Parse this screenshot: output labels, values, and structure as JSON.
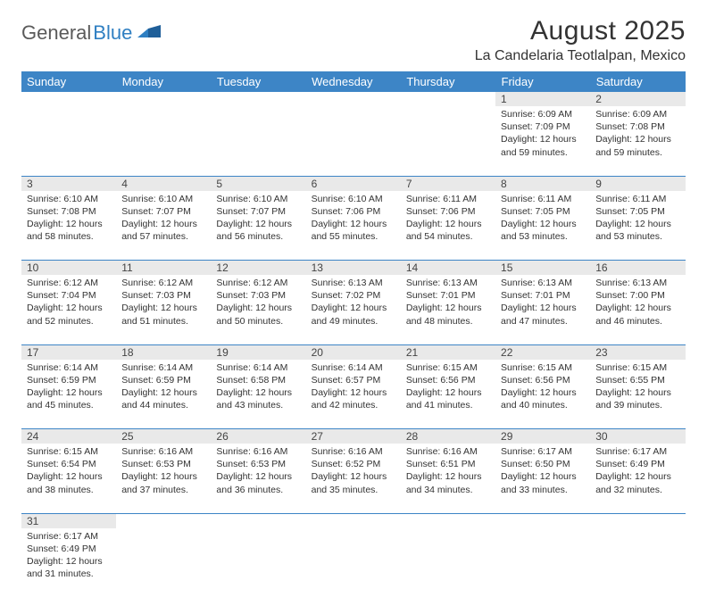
{
  "logo": {
    "text1": "General",
    "text2": "Blue"
  },
  "title": "August 2025",
  "location": "La Candelaria Teotlalpan, Mexico",
  "colors": {
    "header_bg": "#3d85c6",
    "header_text": "#ffffff",
    "daynum_bg": "#e9e9e9",
    "border": "#3d85c6",
    "logo_gray": "#5a5a5a",
    "logo_blue": "#2f7fc2",
    "text": "#333333",
    "background": "#ffffff"
  },
  "typography": {
    "title_fontsize": 30,
    "location_fontsize": 16,
    "dayhead_fontsize": 13,
    "daynum_fontsize": 12,
    "cell_fontsize": 10.5
  },
  "day_headers": [
    "Sunday",
    "Monday",
    "Tuesday",
    "Wednesday",
    "Thursday",
    "Friday",
    "Saturday"
  ],
  "weeks": [
    {
      "nums": [
        "",
        "",
        "",
        "",
        "",
        "1",
        "2"
      ],
      "cells": [
        null,
        null,
        null,
        null,
        null,
        {
          "sunrise": "Sunrise: 6:09 AM",
          "sunset": "Sunset: 7:09 PM",
          "daylight": "Daylight: 12 hours and 59 minutes."
        },
        {
          "sunrise": "Sunrise: 6:09 AM",
          "sunset": "Sunset: 7:08 PM",
          "daylight": "Daylight: 12 hours and 59 minutes."
        }
      ]
    },
    {
      "nums": [
        "3",
        "4",
        "5",
        "6",
        "7",
        "8",
        "9"
      ],
      "cells": [
        {
          "sunrise": "Sunrise: 6:10 AM",
          "sunset": "Sunset: 7:08 PM",
          "daylight": "Daylight: 12 hours and 58 minutes."
        },
        {
          "sunrise": "Sunrise: 6:10 AM",
          "sunset": "Sunset: 7:07 PM",
          "daylight": "Daylight: 12 hours and 57 minutes."
        },
        {
          "sunrise": "Sunrise: 6:10 AM",
          "sunset": "Sunset: 7:07 PM",
          "daylight": "Daylight: 12 hours and 56 minutes."
        },
        {
          "sunrise": "Sunrise: 6:10 AM",
          "sunset": "Sunset: 7:06 PM",
          "daylight": "Daylight: 12 hours and 55 minutes."
        },
        {
          "sunrise": "Sunrise: 6:11 AM",
          "sunset": "Sunset: 7:06 PM",
          "daylight": "Daylight: 12 hours and 54 minutes."
        },
        {
          "sunrise": "Sunrise: 6:11 AM",
          "sunset": "Sunset: 7:05 PM",
          "daylight": "Daylight: 12 hours and 53 minutes."
        },
        {
          "sunrise": "Sunrise: 6:11 AM",
          "sunset": "Sunset: 7:05 PM",
          "daylight": "Daylight: 12 hours and 53 minutes."
        }
      ]
    },
    {
      "nums": [
        "10",
        "11",
        "12",
        "13",
        "14",
        "15",
        "16"
      ],
      "cells": [
        {
          "sunrise": "Sunrise: 6:12 AM",
          "sunset": "Sunset: 7:04 PM",
          "daylight": "Daylight: 12 hours and 52 minutes."
        },
        {
          "sunrise": "Sunrise: 6:12 AM",
          "sunset": "Sunset: 7:03 PM",
          "daylight": "Daylight: 12 hours and 51 minutes."
        },
        {
          "sunrise": "Sunrise: 6:12 AM",
          "sunset": "Sunset: 7:03 PM",
          "daylight": "Daylight: 12 hours and 50 minutes."
        },
        {
          "sunrise": "Sunrise: 6:13 AM",
          "sunset": "Sunset: 7:02 PM",
          "daylight": "Daylight: 12 hours and 49 minutes."
        },
        {
          "sunrise": "Sunrise: 6:13 AM",
          "sunset": "Sunset: 7:01 PM",
          "daylight": "Daylight: 12 hours and 48 minutes."
        },
        {
          "sunrise": "Sunrise: 6:13 AM",
          "sunset": "Sunset: 7:01 PM",
          "daylight": "Daylight: 12 hours and 47 minutes."
        },
        {
          "sunrise": "Sunrise: 6:13 AM",
          "sunset": "Sunset: 7:00 PM",
          "daylight": "Daylight: 12 hours and 46 minutes."
        }
      ]
    },
    {
      "nums": [
        "17",
        "18",
        "19",
        "20",
        "21",
        "22",
        "23"
      ],
      "cells": [
        {
          "sunrise": "Sunrise: 6:14 AM",
          "sunset": "Sunset: 6:59 PM",
          "daylight": "Daylight: 12 hours and 45 minutes."
        },
        {
          "sunrise": "Sunrise: 6:14 AM",
          "sunset": "Sunset: 6:59 PM",
          "daylight": "Daylight: 12 hours and 44 minutes."
        },
        {
          "sunrise": "Sunrise: 6:14 AM",
          "sunset": "Sunset: 6:58 PM",
          "daylight": "Daylight: 12 hours and 43 minutes."
        },
        {
          "sunrise": "Sunrise: 6:14 AM",
          "sunset": "Sunset: 6:57 PM",
          "daylight": "Daylight: 12 hours and 42 minutes."
        },
        {
          "sunrise": "Sunrise: 6:15 AM",
          "sunset": "Sunset: 6:56 PM",
          "daylight": "Daylight: 12 hours and 41 minutes."
        },
        {
          "sunrise": "Sunrise: 6:15 AM",
          "sunset": "Sunset: 6:56 PM",
          "daylight": "Daylight: 12 hours and 40 minutes."
        },
        {
          "sunrise": "Sunrise: 6:15 AM",
          "sunset": "Sunset: 6:55 PM",
          "daylight": "Daylight: 12 hours and 39 minutes."
        }
      ]
    },
    {
      "nums": [
        "24",
        "25",
        "26",
        "27",
        "28",
        "29",
        "30"
      ],
      "cells": [
        {
          "sunrise": "Sunrise: 6:15 AM",
          "sunset": "Sunset: 6:54 PM",
          "daylight": "Daylight: 12 hours and 38 minutes."
        },
        {
          "sunrise": "Sunrise: 6:16 AM",
          "sunset": "Sunset: 6:53 PM",
          "daylight": "Daylight: 12 hours and 37 minutes."
        },
        {
          "sunrise": "Sunrise: 6:16 AM",
          "sunset": "Sunset: 6:53 PM",
          "daylight": "Daylight: 12 hours and 36 minutes."
        },
        {
          "sunrise": "Sunrise: 6:16 AM",
          "sunset": "Sunset: 6:52 PM",
          "daylight": "Daylight: 12 hours and 35 minutes."
        },
        {
          "sunrise": "Sunrise: 6:16 AM",
          "sunset": "Sunset: 6:51 PM",
          "daylight": "Daylight: 12 hours and 34 minutes."
        },
        {
          "sunrise": "Sunrise: 6:17 AM",
          "sunset": "Sunset: 6:50 PM",
          "daylight": "Daylight: 12 hours and 33 minutes."
        },
        {
          "sunrise": "Sunrise: 6:17 AM",
          "sunset": "Sunset: 6:49 PM",
          "daylight": "Daylight: 12 hours and 32 minutes."
        }
      ]
    },
    {
      "nums": [
        "31",
        "",
        "",
        "",
        "",
        "",
        ""
      ],
      "cells": [
        {
          "sunrise": "Sunrise: 6:17 AM",
          "sunset": "Sunset: 6:49 PM",
          "daylight": "Daylight: 12 hours and 31 minutes."
        },
        null,
        null,
        null,
        null,
        null,
        null
      ]
    }
  ]
}
